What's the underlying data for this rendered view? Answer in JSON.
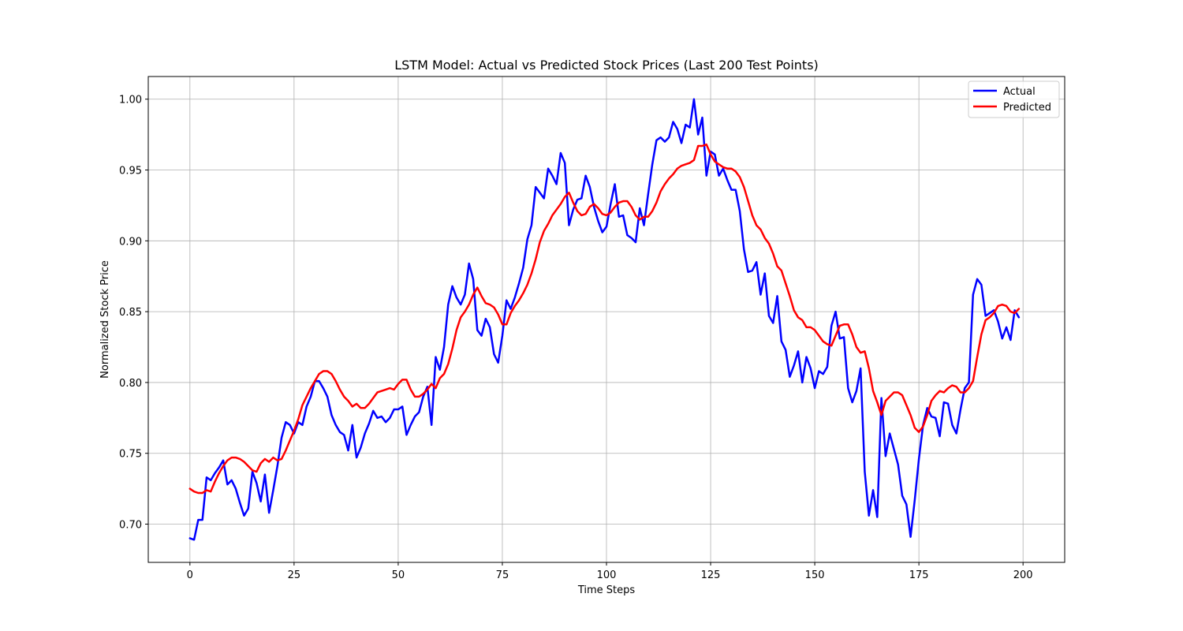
{
  "chart_data": {
    "type": "line",
    "title": "LSTM Model: Actual vs Predicted Stock Prices (Last 200 Test Points)",
    "xlabel": "Time Steps",
    "ylabel": "Normalized Stock Price",
    "xlim": [
      -10,
      210
    ],
    "ylim": [
      0.673,
      1.016
    ],
    "xticks": [
      0,
      25,
      50,
      75,
      100,
      125,
      150,
      175,
      200
    ],
    "yticks": [
      0.7,
      0.75,
      0.8,
      0.85,
      0.9,
      0.95,
      1.0
    ],
    "ytick_labels": [
      "0.70",
      "0.75",
      "0.80",
      "0.85",
      "0.90",
      "0.95",
      "1.00"
    ],
    "grid": true,
    "legend_position": "top-right",
    "series": [
      {
        "name": "Actual",
        "color": "#0000ff",
        "values": [
          0.69,
          0.689,
          0.703,
          0.703,
          0.733,
          0.731,
          0.736,
          0.74,
          0.745,
          0.728,
          0.731,
          0.725,
          0.715,
          0.706,
          0.711,
          0.737,
          0.729,
          0.716,
          0.735,
          0.708,
          0.724,
          0.741,
          0.761,
          0.772,
          0.77,
          0.764,
          0.772,
          0.77,
          0.783,
          0.79,
          0.801,
          0.801,
          0.796,
          0.79,
          0.777,
          0.77,
          0.765,
          0.763,
          0.752,
          0.77,
          0.747,
          0.754,
          0.764,
          0.771,
          0.78,
          0.775,
          0.776,
          0.772,
          0.775,
          0.781,
          0.781,
          0.783,
          0.763,
          0.77,
          0.776,
          0.779,
          0.79,
          0.797,
          0.77,
          0.818,
          0.809,
          0.825,
          0.855,
          0.868,
          0.86,
          0.855,
          0.862,
          0.884,
          0.873,
          0.837,
          0.833,
          0.845,
          0.839,
          0.82,
          0.814,
          0.833,
          0.858,
          0.852,
          0.86,
          0.87,
          0.881,
          0.901,
          0.911,
          0.938,
          0.934,
          0.93,
          0.951,
          0.946,
          0.94,
          0.962,
          0.955,
          0.911,
          0.922,
          0.929,
          0.93,
          0.946,
          0.938,
          0.924,
          0.914,
          0.906,
          0.91,
          0.926,
          0.94,
          0.917,
          0.918,
          0.904,
          0.902,
          0.899,
          0.923,
          0.911,
          0.933,
          0.954,
          0.971,
          0.973,
          0.97,
          0.973,
          0.984,
          0.979,
          0.969,
          0.982,
          0.98,
          1.0,
          0.975,
          0.987,
          0.946,
          0.963,
          0.961,
          0.946,
          0.951,
          0.943,
          0.936,
          0.936,
          0.921,
          0.894,
          0.878,
          0.879,
          0.885,
          0.862,
          0.877,
          0.847,
          0.842,
          0.861,
          0.829,
          0.823,
          0.804,
          0.812,
          0.822,
          0.8,
          0.818,
          0.81,
          0.796,
          0.808,
          0.806,
          0.811,
          0.84,
          0.85,
          0.831,
          0.832,
          0.796,
          0.786,
          0.794,
          0.81,
          0.737,
          0.706,
          0.724,
          0.705,
          0.789,
          0.748,
          0.764,
          0.753,
          0.742,
          0.72,
          0.714,
          0.691,
          0.717,
          0.746,
          0.77,
          0.782,
          0.776,
          0.775,
          0.762,
          0.786,
          0.785,
          0.77,
          0.764,
          0.781,
          0.796,
          0.8,
          0.862,
          0.873,
          0.869,
          0.847,
          0.849,
          0.851,
          0.843,
          0.831,
          0.839,
          0.83,
          0.851,
          0.846
        ]
      },
      {
        "name": "Predicted",
        "color": "#ff0000",
        "values": [
          0.725,
          0.723,
          0.722,
          0.722,
          0.724,
          0.723,
          0.73,
          0.736,
          0.741,
          0.745,
          0.747,
          0.747,
          0.746,
          0.744,
          0.741,
          0.738,
          0.737,
          0.743,
          0.746,
          0.744,
          0.747,
          0.745,
          0.746,
          0.752,
          0.759,
          0.766,
          0.774,
          0.784,
          0.79,
          0.796,
          0.801,
          0.806,
          0.808,
          0.808,
          0.806,
          0.801,
          0.795,
          0.79,
          0.787,
          0.783,
          0.785,
          0.782,
          0.782,
          0.785,
          0.789,
          0.793,
          0.794,
          0.795,
          0.796,
          0.795,
          0.799,
          0.802,
          0.802,
          0.795,
          0.79,
          0.79,
          0.792,
          0.795,
          0.799,
          0.796,
          0.803,
          0.806,
          0.813,
          0.824,
          0.837,
          0.846,
          0.85,
          0.855,
          0.862,
          0.867,
          0.861,
          0.856,
          0.855,
          0.853,
          0.848,
          0.841,
          0.841,
          0.849,
          0.854,
          0.858,
          0.863,
          0.869,
          0.877,
          0.887,
          0.899,
          0.907,
          0.912,
          0.918,
          0.922,
          0.926,
          0.931,
          0.934,
          0.927,
          0.921,
          0.918,
          0.919,
          0.924,
          0.926,
          0.923,
          0.919,
          0.918,
          0.92,
          0.924,
          0.927,
          0.928,
          0.928,
          0.924,
          0.918,
          0.915,
          0.917,
          0.917,
          0.921,
          0.927,
          0.935,
          0.94,
          0.944,
          0.947,
          0.951,
          0.953,
          0.954,
          0.955,
          0.957,
          0.967,
          0.967,
          0.968,
          0.961,
          0.956,
          0.954,
          0.952,
          0.951,
          0.951,
          0.949,
          0.945,
          0.938,
          0.928,
          0.918,
          0.911,
          0.908,
          0.902,
          0.898,
          0.891,
          0.882,
          0.879,
          0.87,
          0.861,
          0.851,
          0.846,
          0.844,
          0.839,
          0.839,
          0.837,
          0.833,
          0.829,
          0.827,
          0.826,
          0.833,
          0.84,
          0.841,
          0.841,
          0.834,
          0.825,
          0.821,
          0.822,
          0.81,
          0.794,
          0.786,
          0.777,
          0.787,
          0.79,
          0.793,
          0.793,
          0.791,
          0.784,
          0.777,
          0.768,
          0.765,
          0.769,
          0.777,
          0.787,
          0.791,
          0.794,
          0.793,
          0.796,
          0.798,
          0.797,
          0.793,
          0.793,
          0.796,
          0.801,
          0.818,
          0.834,
          0.844,
          0.846,
          0.849,
          0.854,
          0.855,
          0.854,
          0.85,
          0.849,
          0.852
        ]
      }
    ]
  }
}
